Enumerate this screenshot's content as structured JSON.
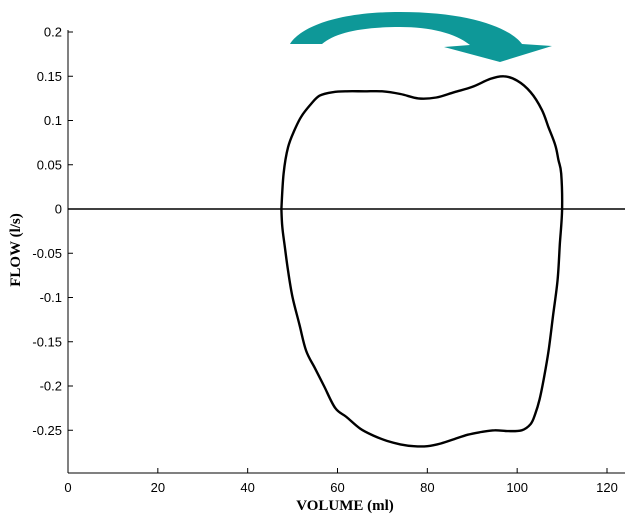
{
  "chart_data": {
    "type": "line",
    "title": "",
    "xlabel": "VOLUME (ml)",
    "ylabel": "FLOW (l/s)",
    "xlim": [
      0,
      125
    ],
    "ylim": [
      -0.29,
      0.2
    ],
    "xticks": [
      "0",
      "20",
      "40",
      "60",
      "80",
      "100",
      "120"
    ],
    "yticks": [
      "0.2",
      "0.15",
      "0.1",
      "0.05",
      "0",
      "-0.05",
      "-0.1",
      "-0.15",
      "-0.2",
      "-0.25"
    ],
    "grid": false,
    "reference_line_y": 0,
    "loop_direction": "clockwise",
    "series": [
      {
        "x": [
          47.5,
          48.0,
          49.0,
          50.5,
          52.0,
          54.0,
          56.0,
          59.0,
          62.0,
          66.0,
          70.0,
          74.0,
          78.0,
          82.0,
          86.0,
          90.0,
          94.0,
          97.0,
          100.0,
          103.0,
          105.5,
          107.0,
          108.5,
          109.2,
          109.8,
          110.0,
          109.5,
          109.0,
          108.0,
          107.0,
          106.0,
          105.0,
          104.0,
          103.0,
          101.0,
          98.0,
          95.0,
          92.0,
          89.0,
          86.0,
          83.0,
          80.0,
          77.0,
          74.0,
          71.0,
          68.0,
          65.0,
          62.0,
          59.5,
          57.0,
          55.0,
          53.0,
          51.5,
          50.0,
          49.0,
          48.2,
          47.7,
          47.5
        ],
        "y": [
          0.0,
          0.04,
          0.07,
          0.09,
          0.105,
          0.118,
          0.128,
          0.132,
          0.133,
          0.133,
          0.133,
          0.13,
          0.125,
          0.126,
          0.132,
          0.138,
          0.147,
          0.15,
          0.145,
          0.132,
          0.112,
          0.092,
          0.072,
          0.055,
          0.04,
          0.0,
          -0.04,
          -0.08,
          -0.12,
          -0.16,
          -0.19,
          -0.215,
          -0.232,
          -0.243,
          -0.25,
          -0.251,
          -0.25,
          -0.252,
          -0.255,
          -0.26,
          -0.265,
          -0.268,
          -0.268,
          -0.266,
          -0.262,
          -0.256,
          -0.248,
          -0.235,
          -0.225,
          -0.2,
          -0.18,
          -0.16,
          -0.13,
          -0.1,
          -0.07,
          -0.04,
          -0.02,
          0.0
        ]
      }
    ],
    "colors": {
      "curve": "#000000",
      "axes": "#000000",
      "arrow": "#0e9898"
    }
  }
}
